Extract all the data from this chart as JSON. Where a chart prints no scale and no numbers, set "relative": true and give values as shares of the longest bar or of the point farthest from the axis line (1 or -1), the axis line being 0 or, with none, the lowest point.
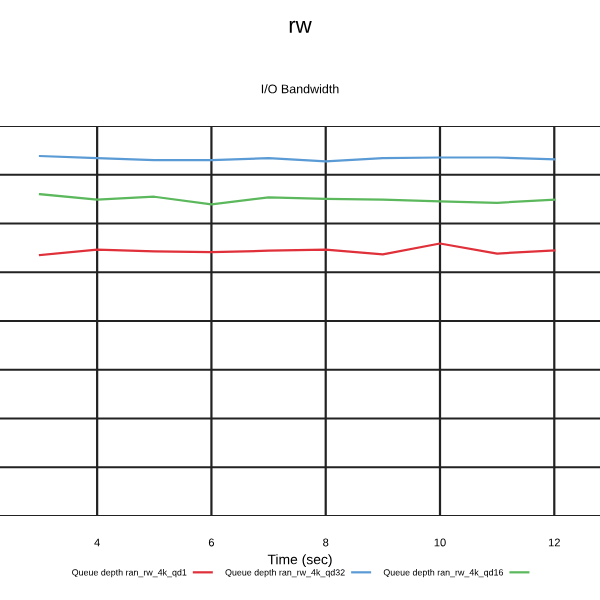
{
  "chart_data": {
    "type": "line",
    "title": "rw",
    "subtitle": "I/O Bandwidth",
    "xlabel": "Time (sec)",
    "relative": true,
    "x": [
      3,
      4,
      5,
      6,
      7,
      8,
      9,
      10,
      11,
      12
    ],
    "xlim": [
      2.3,
      12.8
    ],
    "xticks": [
      4,
      6,
      8,
      10,
      12
    ],
    "grid": true,
    "legend": "bottom",
    "marker": "none",
    "line_style": "solid",
    "series": [
      {
        "name": "Queue depth ran_rw_4k_qd1",
        "color": "#e0303a",
        "values": [
          0.725,
          0.74,
          0.735,
          0.733,
          0.737,
          0.74,
          0.727,
          0.757,
          0.729,
          0.738
        ]
      },
      {
        "name": "Queue depth ran_rw_4k_qd32",
        "color": "#5b9bd5",
        "values": [
          1,
          0.994,
          0.989,
          0.989,
          0.994,
          0.985,
          0.994,
          0.996,
          0.996,
          0.991
        ]
      },
      {
        "name": "Queue depth ran_rw_4k_qd16",
        "color": "#5cb85c",
        "values": [
          0.894,
          0.879,
          0.887,
          0.866,
          0.885,
          0.881,
          0.879,
          0.874,
          0.87,
          0.879
        ]
      }
    ]
  }
}
